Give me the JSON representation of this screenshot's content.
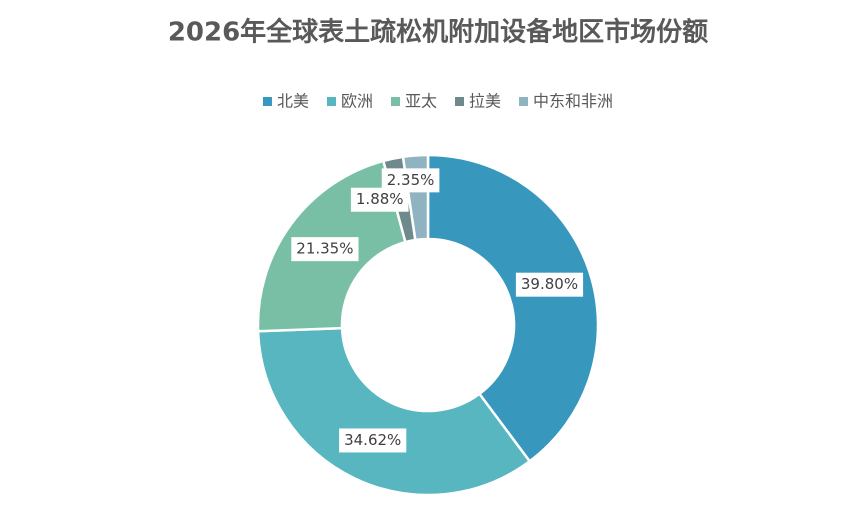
{
  "chart_data": {
    "type": "donut",
    "title": "2026年全球表土疏松机附加设备地区市场份额",
    "categories": [
      "北美",
      "欧洲",
      "亚太",
      "拉美",
      "中东和非洲"
    ],
    "values": [
      39.8,
      34.62,
      21.35,
      1.88,
      2.35
    ],
    "value_labels": [
      "39.80%",
      "34.62%",
      "21.35%",
      "1.88%",
      "2.35%"
    ],
    "colors": [
      "#3797bd",
      "#57b6c0",
      "#78bfa6",
      "#6f8a8c",
      "#8fb3c0"
    ],
    "legend": "top"
  }
}
